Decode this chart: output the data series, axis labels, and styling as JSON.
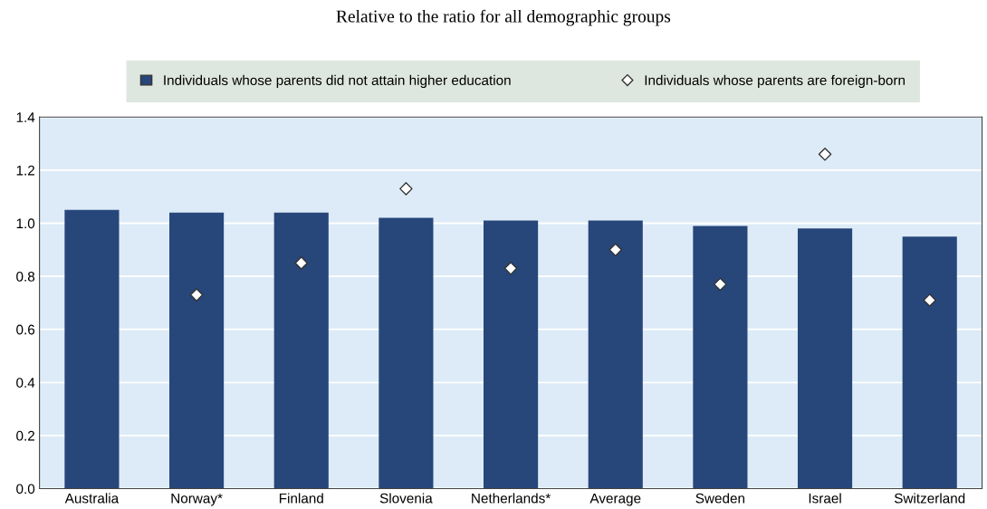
{
  "chart_data": {
    "type": "bar",
    "title": "Relative to the ratio for all demographic groups",
    "categories": [
      "Australia",
      "Norway*",
      "Finland",
      "Slovenia",
      "Netherlands*",
      "Average",
      "Sweden",
      "Israel",
      "Switzerland"
    ],
    "series": [
      {
        "name": "Individuals whose parents did not attain higher education",
        "color": "#27467a",
        "values": [
          1.05,
          1.04,
          1.04,
          1.02,
          1.01,
          1.01,
          0.99,
          0.98,
          0.95
        ]
      },
      {
        "name": "Individuals whose parents are foreign-born",
        "type": "scatter",
        "marker": "diamond",
        "color": "#ffffff",
        "values": [
          null,
          0.73,
          0.85,
          1.13,
          0.83,
          0.9,
          0.77,
          1.26,
          0.71
        ]
      }
    ],
    "ylim": [
      0,
      1.4
    ],
    "yticks": [
      {
        "value": 0,
        "label": "0.0"
      },
      0.2,
      0.4,
      0.6,
      0.8,
      {
        "value": 1,
        "label": "1.0"
      },
      1.2,
      1.4
    ],
    "grid": "y",
    "legend": "top"
  }
}
